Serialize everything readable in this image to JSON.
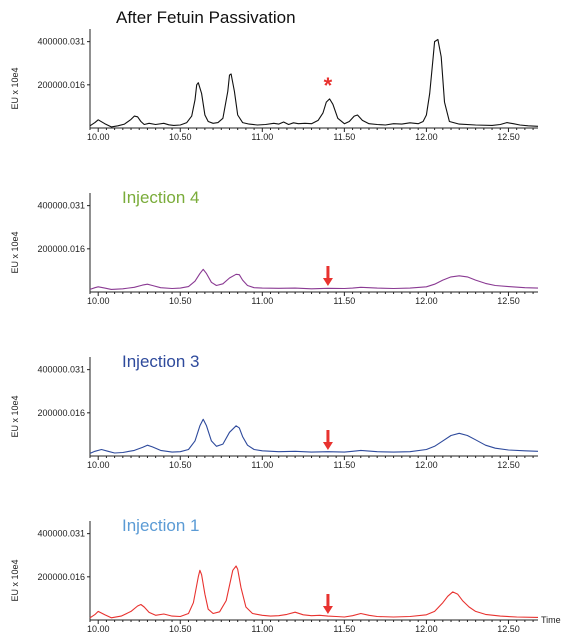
{
  "chart_data": [
    {
      "type": "line",
      "title": "After Fetuin Passivation",
      "title_color": "#111111",
      "line_color": "#111111",
      "ylabel": "EU x 10e4",
      "xlabel": "",
      "y_ticks": [
        "400000.031",
        "200000.016"
      ],
      "y_tick_values": [
        400000.031,
        200000.016
      ],
      "x_ticks": [
        "10.00",
        "10.50",
        "11.00",
        "11.50",
        "12.00",
        "12.50"
      ],
      "x_tick_values": [
        10.0,
        10.5,
        11.0,
        11.5,
        12.0,
        12.5
      ],
      "xlim": [
        9.95,
        12.68
      ],
      "ylim": [
        0,
        440000
      ],
      "marker": {
        "symbol": "*",
        "x": 11.4,
        "color": "#e8322f"
      },
      "series": [
        {
          "x": [
            9.95,
            9.98,
            10.0,
            10.04,
            10.08,
            10.12,
            10.16,
            10.2,
            10.22,
            10.24,
            10.26,
            10.28,
            10.31,
            10.35,
            10.4,
            10.43,
            10.46,
            10.5,
            10.54,
            10.57,
            10.59,
            10.6,
            10.61,
            10.63,
            10.65,
            10.67,
            10.7,
            10.73,
            10.76,
            10.79,
            10.8,
            10.81,
            10.83,
            10.85,
            10.88,
            10.92,
            10.97,
            11.02,
            11.07,
            11.1,
            11.13,
            11.16,
            11.19,
            11.22,
            11.26,
            11.3,
            11.34,
            11.37,
            11.39,
            11.41,
            11.43,
            11.46,
            11.5,
            11.53,
            11.56,
            11.58,
            11.61,
            11.65,
            11.7,
            11.75,
            11.8,
            11.85,
            11.9,
            11.95,
            11.98,
            12.0,
            12.02,
            12.04,
            12.05,
            12.07,
            12.09,
            12.11,
            12.14,
            12.2,
            12.3,
            12.4,
            12.45,
            12.49,
            12.53,
            12.57,
            12.62,
            12.68
          ],
          "values": [
            10000,
            25000,
            38000,
            20000,
            5000,
            10000,
            18000,
            40000,
            55000,
            52000,
            30000,
            16000,
            22000,
            16000,
            22000,
            15000,
            12000,
            14000,
            25000,
            55000,
            130000,
            200000,
            210000,
            160000,
            60000,
            30000,
            22000,
            25000,
            45000,
            170000,
            245000,
            250000,
            170000,
            60000,
            25000,
            18000,
            14000,
            16000,
            22000,
            18000,
            28000,
            16000,
            24000,
            20000,
            22000,
            20000,
            35000,
            70000,
            120000,
            135000,
            110000,
            45000,
            20000,
            30000,
            55000,
            60000,
            35000,
            20000,
            16000,
            14000,
            20000,
            18000,
            24000,
            20000,
            30000,
            60000,
            160000,
            320000,
            400000,
            410000,
            330000,
            120000,
            30000,
            18000,
            14000,
            12000,
            16000,
            25000,
            20000,
            14000,
            10000,
            8000
          ]
        }
      ]
    },
    {
      "type": "line",
      "title": "Injection 4",
      "title_color": "#7aac3a",
      "line_color": "#8a3a93",
      "ylabel": "EU x 10e4",
      "xlabel": "",
      "y_ticks": [
        "400000.031",
        "200000.016"
      ],
      "y_tick_values": [
        400000.031,
        200000.016
      ],
      "x_ticks": [
        "10.00",
        "10.50",
        "11.00",
        "11.50",
        "12.00",
        "12.50"
      ],
      "x_tick_values": [
        10.0,
        10.5,
        11.0,
        11.5,
        12.0,
        12.5
      ],
      "xlim": [
        9.95,
        12.68
      ],
      "ylim": [
        0,
        440000
      ],
      "marker": {
        "symbol": "arrow",
        "x": 11.4,
        "color": "#e8322f"
      },
      "series": [
        {
          "x": [
            9.95,
            9.98,
            10.0,
            10.04,
            10.08,
            10.15,
            10.22,
            10.27,
            10.3,
            10.33,
            10.38,
            10.45,
            10.5,
            10.55,
            10.59,
            10.62,
            10.64,
            10.66,
            10.69,
            10.72,
            10.76,
            10.8,
            10.84,
            10.86,
            10.88,
            10.91,
            10.95,
            11.0,
            11.1,
            11.2,
            11.3,
            11.4,
            11.5,
            11.55,
            11.6,
            11.7,
            11.8,
            11.9,
            12.0,
            12.05,
            12.1,
            12.15,
            12.2,
            12.25,
            12.3,
            12.36,
            12.42,
            12.5,
            12.6,
            12.68
          ],
          "values": [
            12000,
            20000,
            24000,
            18000,
            12000,
            15000,
            22000,
            32000,
            36000,
            30000,
            20000,
            16000,
            18000,
            25000,
            50000,
            85000,
            105000,
            85000,
            45000,
            30000,
            38000,
            65000,
            82000,
            80000,
            55000,
            30000,
            20000,
            18000,
            17000,
            18000,
            15000,
            17000,
            16000,
            18000,
            22000,
            18000,
            16000,
            18000,
            24000,
            36000,
            55000,
            70000,
            75000,
            70000,
            55000,
            40000,
            30000,
            25000,
            20000,
            18000
          ]
        }
      ]
    },
    {
      "type": "line",
      "title": "Injection 3",
      "title_color": "#2e4a9c",
      "line_color": "#2e4a9c",
      "ylabel": "EU x 10e4",
      "xlabel": "",
      "y_ticks": [
        "400000.031",
        "200000.016"
      ],
      "y_tick_values": [
        400000.031,
        200000.016
      ],
      "x_ticks": [
        "10.00",
        "10.50",
        "11.00",
        "11.50",
        "12.00",
        "12.50"
      ],
      "x_tick_values": [
        10.0,
        10.5,
        11.0,
        11.5,
        12.0,
        12.5
      ],
      "xlim": [
        9.95,
        12.68
      ],
      "ylim": [
        0,
        440000
      ],
      "marker": {
        "symbol": "arrow",
        "x": 11.4,
        "color": "#e8322f"
      },
      "series": [
        {
          "x": [
            9.95,
            9.98,
            10.02,
            10.06,
            10.1,
            10.15,
            10.22,
            10.27,
            10.3,
            10.33,
            10.38,
            10.45,
            10.5,
            10.55,
            10.59,
            10.62,
            10.64,
            10.66,
            10.69,
            10.72,
            10.76,
            10.8,
            10.84,
            10.86,
            10.88,
            10.91,
            10.95,
            11.0,
            11.1,
            11.2,
            11.3,
            11.4,
            11.5,
            11.55,
            11.6,
            11.7,
            11.8,
            11.9,
            12.0,
            12.05,
            12.1,
            12.15,
            12.2,
            12.25,
            12.3,
            12.36,
            12.42,
            12.5,
            12.6,
            12.68
          ],
          "values": [
            12000,
            22000,
            30000,
            22000,
            14000,
            16000,
            26000,
            40000,
            50000,
            42000,
            26000,
            18000,
            20000,
            30000,
            70000,
            140000,
            170000,
            140000,
            70000,
            45000,
            55000,
            110000,
            140000,
            130000,
            90000,
            50000,
            30000,
            24000,
            20000,
            22000,
            18000,
            20000,
            18000,
            22000,
            26000,
            20000,
            18000,
            20000,
            30000,
            45000,
            70000,
            95000,
            105000,
            95000,
            75000,
            50000,
            36000,
            28000,
            24000,
            22000
          ]
        }
      ]
    },
    {
      "type": "line",
      "title": "Injection 1",
      "title_color": "#5b9bd5",
      "line_color": "#e8322f",
      "ylabel": "EU x 10e4",
      "xlabel": "Time",
      "y_ticks": [
        "400000.031",
        "200000.016"
      ],
      "y_tick_values": [
        400000.031,
        200000.016
      ],
      "x_ticks": [
        "10.00",
        "10.50",
        "11.00",
        "11.50",
        "12.00",
        "12.50"
      ],
      "x_tick_values": [
        10.0,
        10.5,
        11.0,
        11.5,
        12.0,
        12.5
      ],
      "xlim": [
        9.95,
        12.68
      ],
      "ylim": [
        0,
        440000
      ],
      "marker": {
        "symbol": "arrow",
        "x": 11.4,
        "color": "#e8322f"
      },
      "series": [
        {
          "x": [
            9.95,
            9.98,
            10.0,
            10.04,
            10.08,
            10.14,
            10.2,
            10.24,
            10.26,
            10.28,
            10.31,
            10.35,
            10.4,
            10.45,
            10.5,
            10.55,
            10.58,
            10.61,
            10.62,
            10.63,
            10.65,
            10.67,
            10.7,
            10.74,
            10.78,
            10.82,
            10.84,
            10.85,
            10.87,
            10.9,
            10.94,
            11.0,
            11.05,
            11.1,
            11.15,
            11.2,
            11.25,
            11.3,
            11.35,
            11.4,
            11.45,
            11.5,
            11.55,
            11.6,
            11.65,
            11.7,
            11.8,
            11.9,
            12.0,
            12.05,
            12.1,
            12.13,
            12.16,
            12.19,
            12.22,
            12.26,
            12.3,
            12.36,
            12.45,
            12.55,
            12.68
          ],
          "values": [
            10000,
            25000,
            40000,
            24000,
            10000,
            18000,
            40000,
            65000,
            72000,
            60000,
            35000,
            22000,
            28000,
            18000,
            16000,
            30000,
            80000,
            200000,
            230000,
            210000,
            120000,
            50000,
            30000,
            38000,
            90000,
            230000,
            250000,
            235000,
            150000,
            60000,
            30000,
            22000,
            18000,
            20000,
            26000,
            36000,
            24000,
            20000,
            22000,
            18000,
            16000,
            14000,
            20000,
            30000,
            22000,
            16000,
            14000,
            16000,
            24000,
            40000,
            80000,
            110000,
            130000,
            120000,
            90000,
            60000,
            40000,
            26000,
            18000,
            14000,
            12000
          ]
        }
      ]
    }
  ]
}
